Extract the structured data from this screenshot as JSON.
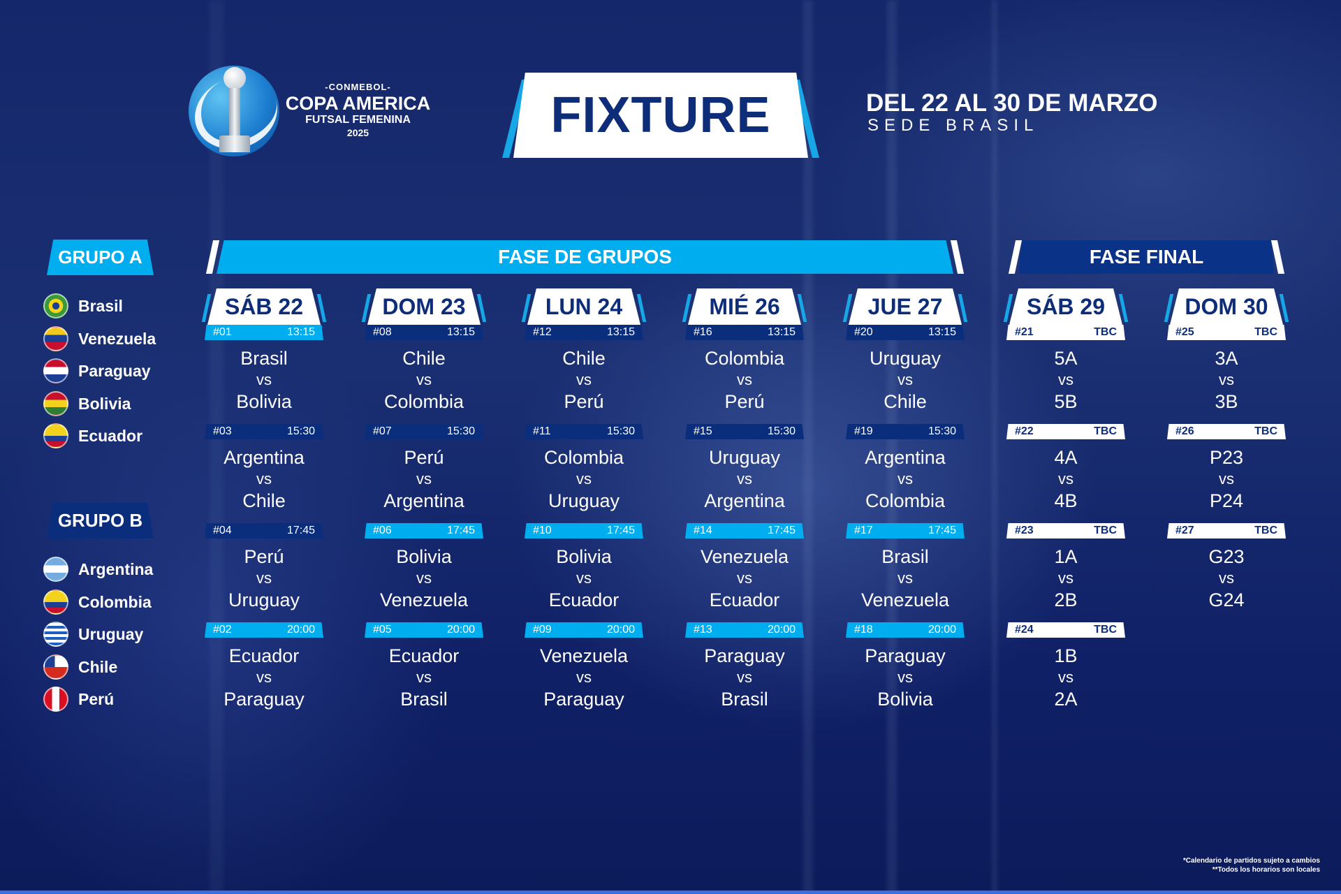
{
  "logo": {
    "conmebol": "-CONMEBOL-",
    "name": "COPA AMERICA",
    "subtitle": "FUTSAL FEMENINA",
    "year": "2025"
  },
  "fixture_title": "FIXTURE",
  "dates": "DEL 22 AL 30 DE MARZO",
  "venue": "SEDE BRASIL",
  "colors": {
    "light": "#00aeef",
    "dark": "#0a2d7c",
    "navy": "#0e2d78"
  },
  "groups": [
    {
      "name": "GRUPO A",
      "teams": [
        {
          "name": "Brasil",
          "flag": "brazil-flag"
        },
        {
          "name": "Venezuela",
          "flag": "venezuela-flag"
        },
        {
          "name": "Paraguay",
          "flag": "paraguay-flag"
        },
        {
          "name": "Bolivia",
          "flag": "bolivia-flag"
        },
        {
          "name": "Ecuador",
          "flag": "ecuador-flag"
        }
      ]
    },
    {
      "name": "GRUPO B",
      "teams": [
        {
          "name": "Argentina",
          "flag": "argentina-flag"
        },
        {
          "name": "Colombia",
          "flag": "colombia-flag"
        },
        {
          "name": "Uruguay",
          "flag": "uruguay-flag"
        },
        {
          "name": "Chile",
          "flag": "chile-flag"
        },
        {
          "name": "Perú",
          "flag": "peru-flag"
        }
      ]
    }
  ],
  "group_stage_label": "FASE DE GRUPOS",
  "final_stage_label": "FASE FINAL",
  "vs": "vs",
  "days": [
    {
      "label": "SÁB 22",
      "matches": [
        {
          "num": "#01",
          "time": "13:15",
          "home": "Brasil",
          "away": "Bolivia",
          "bar": "light"
        },
        {
          "num": "#03",
          "time": "15:30",
          "home": "Argentina",
          "away": "Chile",
          "bar": "dark"
        },
        {
          "num": "#04",
          "time": "17:45",
          "home": "Perú",
          "away": "Uruguay",
          "bar": "dark"
        },
        {
          "num": "#02",
          "time": "20:00",
          "home": "Ecuador",
          "away": "Paraguay",
          "bar": "light"
        }
      ]
    },
    {
      "label": "DOM 23",
      "matches": [
        {
          "num": "#08",
          "time": "13:15",
          "home": "Chile",
          "away": "Colombia",
          "bar": "dark"
        },
        {
          "num": "#07",
          "time": "15:30",
          "home": "Perú",
          "away": "Argentina",
          "bar": "dark"
        },
        {
          "num": "#06",
          "time": "17:45",
          "home": "Bolivia",
          "away": "Venezuela",
          "bar": "light"
        },
        {
          "num": "#05",
          "time": "20:00",
          "home": "Ecuador",
          "away": "Brasil",
          "bar": "light"
        }
      ]
    },
    {
      "label": "LUN 24",
      "matches": [
        {
          "num": "#12",
          "time": "13:15",
          "home": "Chile",
          "away": "Perú",
          "bar": "dark"
        },
        {
          "num": "#11",
          "time": "15:30",
          "home": "Colombia",
          "away": "Uruguay",
          "bar": "dark"
        },
        {
          "num": "#10",
          "time": "17:45",
          "home": "Bolivia",
          "away": "Ecuador",
          "bar": "light"
        },
        {
          "num": "#09",
          "time": "20:00",
          "home": "Venezuela",
          "away": "Paraguay",
          "bar": "light"
        }
      ]
    },
    {
      "label": "MIÉ 26",
      "matches": [
        {
          "num": "#16",
          "time": "13:15",
          "home": "Colombia",
          "away": "Perú",
          "bar": "dark"
        },
        {
          "num": "#15",
          "time": "15:30",
          "home": "Uruguay",
          "away": "Argentina",
          "bar": "dark"
        },
        {
          "num": "#14",
          "time": "17:45",
          "home": "Venezuela",
          "away": "Ecuador",
          "bar": "light"
        },
        {
          "num": "#13",
          "time": "20:00",
          "home": "Paraguay",
          "away": "Brasil",
          "bar": "light"
        }
      ]
    },
    {
      "label": "JUE 27",
      "matches": [
        {
          "num": "#20",
          "time": "13:15",
          "home": "Uruguay",
          "away": "Chile",
          "bar": "dark"
        },
        {
          "num": "#19",
          "time": "15:30",
          "home": "Argentina",
          "away": "Colombia",
          "bar": "dark"
        },
        {
          "num": "#17",
          "time": "17:45",
          "home": "Brasil",
          "away": "Venezuela",
          "bar": "light"
        },
        {
          "num": "#18",
          "time": "20:00",
          "home": "Paraguay",
          "away": "Bolivia",
          "bar": "light"
        }
      ]
    },
    {
      "label": "SÁB 29",
      "matches": [
        {
          "num": "#21",
          "time": "TBC",
          "home": "5A",
          "away": "5B",
          "bar": "white"
        },
        {
          "num": "#22",
          "time": "TBC",
          "home": "4A",
          "away": "4B",
          "bar": "white"
        },
        {
          "num": "#23",
          "time": "TBC",
          "home": "1A",
          "away": "2B",
          "bar": "white"
        },
        {
          "num": "#24",
          "time": "TBC",
          "home": "1B",
          "away": "2A",
          "bar": "white"
        }
      ]
    },
    {
      "label": "DOM 30",
      "matches": [
        {
          "num": "#25",
          "time": "TBC",
          "home": "3A",
          "away": "3B",
          "bar": "white"
        },
        {
          "num": "#26",
          "time": "TBC",
          "home": "P23",
          "away": "P24",
          "bar": "white"
        },
        {
          "num": "#27",
          "time": "TBC",
          "home": "G23",
          "away": "G24",
          "bar": "white"
        }
      ]
    }
  ],
  "notes": [
    "*Calendario de partidos sujeto a cambios",
    "**Todos los horarios son locales"
  ]
}
